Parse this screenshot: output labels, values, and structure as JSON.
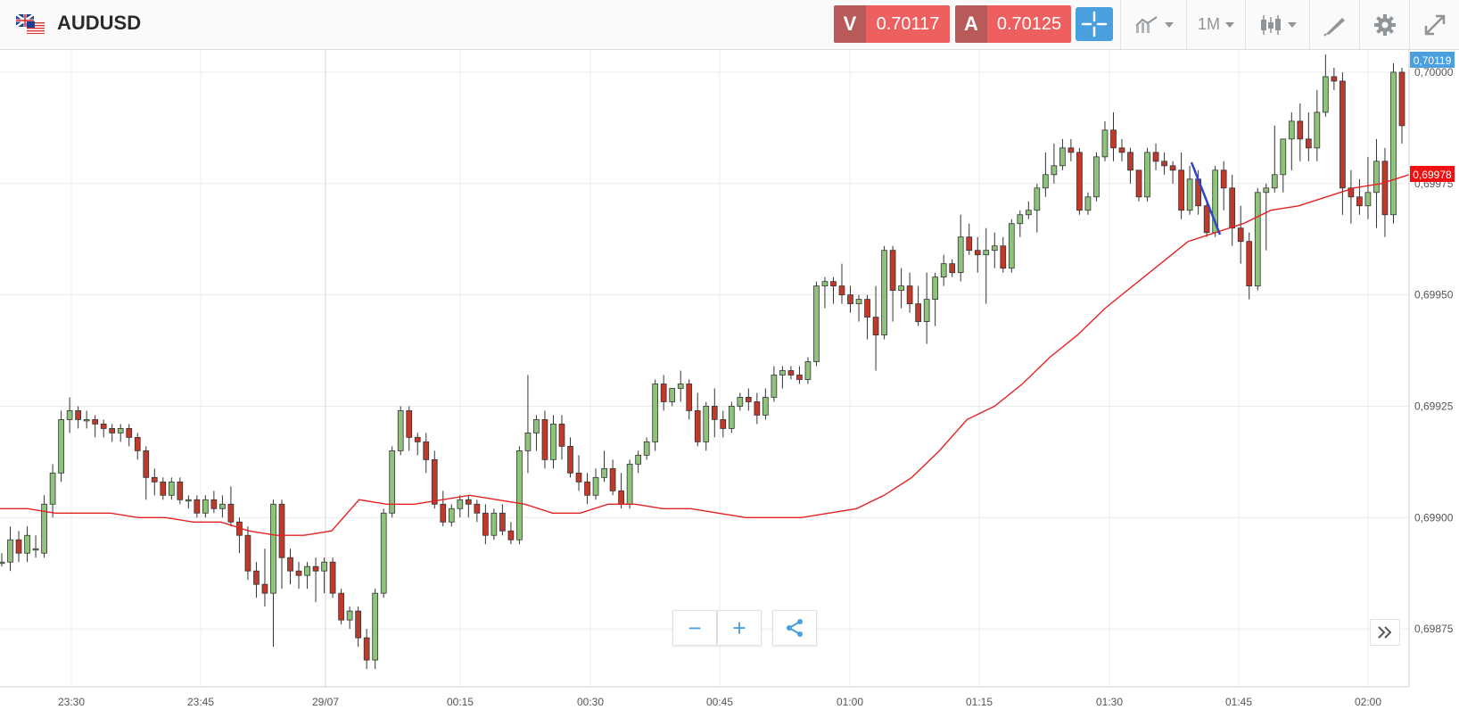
{
  "header": {
    "symbol": "AUDUSD",
    "sell_label": "V",
    "sell_price": "0.70117",
    "buy_label": "A",
    "buy_price": "0.70125",
    "timeframe": "1M",
    "icons": [
      "crosshair-icon",
      "chart-type-icon",
      "candlestick-icon",
      "draw-icon",
      "gear-icon",
      "expand-icon"
    ]
  },
  "chart_data": {
    "type": "candlestick",
    "instrument": "AUDUSD",
    "y_ticks": [
      "0,70000",
      "0,69975",
      "0,69950",
      "0,69925",
      "0,69900",
      "0,69875"
    ],
    "x_ticks": [
      "23:30",
      "23:45",
      "29/07",
      "00:15",
      "00:30",
      "00:45",
      "01:00",
      "01:15",
      "01:30",
      "01:45",
      "02:00"
    ],
    "ylim": [
      0.69862,
      0.70005
    ],
    "price_tag": "0,70119",
    "ma_tag": "0,69978",
    "colors": {
      "up": "#8fc27a",
      "down": "#c0392b",
      "ma": "#e52222",
      "annotation": "#3344cc",
      "price_tag": "#4a9fde",
      "ma_tag": "#ee1111"
    },
    "candles": [
      [
        0.6989,
        0.69892,
        0.69889,
        0.6989
      ],
      [
        0.6989,
        0.69898,
        0.69888,
        0.69895
      ],
      [
        0.69895,
        0.69897,
        0.6989,
        0.69892
      ],
      [
        0.69892,
        0.69898,
        0.6989,
        0.69896
      ],
      [
        0.69893,
        0.69896,
        0.69891,
        0.69893
      ],
      [
        0.69892,
        0.69905,
        0.69891,
        0.69903
      ],
      [
        0.69903,
        0.69912,
        0.699,
        0.6991
      ],
      [
        0.6991,
        0.69924,
        0.69908,
        0.69922
      ],
      [
        0.69922,
        0.69927,
        0.69919,
        0.69924
      ],
      [
        0.69924,
        0.69925,
        0.6992,
        0.69922
      ],
      [
        0.69922,
        0.69924,
        0.6992,
        0.69922
      ],
      [
        0.69922,
        0.69923,
        0.69918,
        0.69921
      ],
      [
        0.69921,
        0.69922,
        0.69918,
        0.6992
      ],
      [
        0.6992,
        0.69921,
        0.69917,
        0.69919
      ],
      [
        0.69919,
        0.69921,
        0.69917,
        0.6992
      ],
      [
        0.6992,
        0.69921,
        0.69916,
        0.69918
      ],
      [
        0.69918,
        0.69919,
        0.69913,
        0.69915
      ],
      [
        0.69915,
        0.69916,
        0.69904,
        0.69909
      ],
      [
        0.69909,
        0.69911,
        0.69905,
        0.69908
      ],
      [
        0.69908,
        0.69909,
        0.69904,
        0.69905
      ],
      [
        0.69905,
        0.69909,
        0.69904,
        0.69908
      ],
      [
        0.69908,
        0.69909,
        0.69903,
        0.69904
      ],
      [
        0.69904,
        0.69905,
        0.69902,
        0.69904
      ],
      [
        0.69904,
        0.69905,
        0.699,
        0.69901
      ],
      [
        0.69901,
        0.69905,
        0.699,
        0.69904
      ],
      [
        0.69904,
        0.69906,
        0.69901,
        0.69902
      ],
      [
        0.69902,
        0.69905,
        0.699,
        0.69903
      ],
      [
        0.69903,
        0.69907,
        0.69898,
        0.69899
      ],
      [
        0.69899,
        0.699,
        0.69892,
        0.69896
      ],
      [
        0.69896,
        0.69898,
        0.69886,
        0.69888
      ],
      [
        0.69888,
        0.6989,
        0.69882,
        0.69885
      ],
      [
        0.69885,
        0.69893,
        0.6988,
        0.69883
      ],
      [
        0.69883,
        0.69904,
        0.69871,
        0.69903
      ],
      [
        0.69903,
        0.69904,
        0.69884,
        0.69891
      ],
      [
        0.69891,
        0.69893,
        0.69885,
        0.69888
      ],
      [
        0.69888,
        0.6989,
        0.69884,
        0.69887
      ],
      [
        0.69887,
        0.6989,
        0.69884,
        0.69889
      ],
      [
        0.69889,
        0.69891,
        0.69881,
        0.69888
      ],
      [
        0.69888,
        0.69891,
        0.69883,
        0.6989
      ],
      [
        0.6989,
        0.69891,
        0.69882,
        0.69883
      ],
      [
        0.69883,
        0.69884,
        0.69876,
        0.69877
      ],
      [
        0.69877,
        0.6988,
        0.69875,
        0.69879
      ],
      [
        0.69879,
        0.6988,
        0.69871,
        0.69873
      ],
      [
        0.69873,
        0.69875,
        0.69866,
        0.69868
      ],
      [
        0.69868,
        0.69884,
        0.69866,
        0.69883
      ],
      [
        0.69883,
        0.69902,
        0.69882,
        0.69901
      ],
      [
        0.69901,
        0.69916,
        0.699,
        0.69915
      ],
      [
        0.69915,
        0.69925,
        0.69914,
        0.69924
      ],
      [
        0.69924,
        0.69925,
        0.69915,
        0.69918
      ],
      [
        0.69918,
        0.69919,
        0.69914,
        0.69917
      ],
      [
        0.69917,
        0.69919,
        0.6991,
        0.69913
      ],
      [
        0.69913,
        0.69915,
        0.69902,
        0.69903
      ],
      [
        0.69903,
        0.69906,
        0.69898,
        0.69899
      ],
      [
        0.69899,
        0.69903,
        0.69898,
        0.69902
      ],
      [
        0.69902,
        0.69905,
        0.699,
        0.69904
      ],
      [
        0.69904,
        0.69905,
        0.699,
        0.69903
      ],
      [
        0.69903,
        0.69904,
        0.69899,
        0.69901
      ],
      [
        0.69901,
        0.69903,
        0.69894,
        0.69896
      ],
      [
        0.69896,
        0.69902,
        0.69895,
        0.69901
      ],
      [
        0.69901,
        0.69903,
        0.69896,
        0.69897
      ],
      [
        0.69897,
        0.69899,
        0.69894,
        0.69895
      ],
      [
        0.69895,
        0.69916,
        0.69894,
        0.69915
      ],
      [
        0.69915,
        0.69932,
        0.6991,
        0.69919
      ],
      [
        0.69919,
        0.69923,
        0.69915,
        0.69922
      ],
      [
        0.69922,
        0.69924,
        0.69911,
        0.69913
      ],
      [
        0.69913,
        0.69923,
        0.69911,
        0.69921
      ],
      [
        0.69921,
        0.69923,
        0.69913,
        0.69916
      ],
      [
        0.69916,
        0.69918,
        0.69909,
        0.6991
      ],
      [
        0.6991,
        0.69914,
        0.69906,
        0.69908
      ],
      [
        0.69908,
        0.6991,
        0.69903,
        0.69905
      ],
      [
        0.69905,
        0.69911,
        0.69904,
        0.69909
      ],
      [
        0.69909,
        0.69915,
        0.69908,
        0.69911
      ],
      [
        0.69911,
        0.69913,
        0.69905,
        0.69906
      ],
      [
        0.69906,
        0.6991,
        0.69902,
        0.69903
      ],
      [
        0.69903,
        0.69913,
        0.69902,
        0.69912
      ],
      [
        0.69912,
        0.69915,
        0.6991,
        0.69914
      ],
      [
        0.69914,
        0.69918,
        0.69913,
        0.69917
      ],
      [
        0.69917,
        0.69931,
        0.69915,
        0.6993
      ],
      [
        0.6993,
        0.69932,
        0.69924,
        0.69926
      ],
      [
        0.69926,
        0.69929,
        0.69925,
        0.69929
      ],
      [
        0.69929,
        0.69933,
        0.69926,
        0.6993
      ],
      [
        0.6993,
        0.69931,
        0.69922,
        0.69924
      ],
      [
        0.69924,
        0.69928,
        0.69916,
        0.69917
      ],
      [
        0.69917,
        0.69926,
        0.69915,
        0.69925
      ],
      [
        0.69925,
        0.69929,
        0.69918,
        0.69922
      ],
      [
        0.69922,
        0.69924,
        0.69918,
        0.6992
      ],
      [
        0.6992,
        0.69926,
        0.69919,
        0.69925
      ],
      [
        0.69925,
        0.69928,
        0.69924,
        0.69927
      ],
      [
        0.69927,
        0.69929,
        0.69924,
        0.69926
      ],
      [
        0.69926,
        0.69928,
        0.69921,
        0.69923
      ],
      [
        0.69923,
        0.69929,
        0.69922,
        0.69927
      ],
      [
        0.69927,
        0.69934,
        0.69926,
        0.69932
      ],
      [
        0.69932,
        0.69934,
        0.69929,
        0.69933
      ],
      [
        0.69933,
        0.69934,
        0.69931,
        0.69932
      ],
      [
        0.69932,
        0.69934,
        0.6993,
        0.69931
      ],
      [
        0.69931,
        0.69936,
        0.6993,
        0.69935
      ],
      [
        0.69935,
        0.69953,
        0.69934,
        0.69952
      ],
      [
        0.69952,
        0.69954,
        0.69947,
        0.69953
      ],
      [
        0.69953,
        0.69954,
        0.69948,
        0.69952
      ],
      [
        0.69952,
        0.69957,
        0.69948,
        0.6995
      ],
      [
        0.6995,
        0.69952,
        0.69946,
        0.69948
      ],
      [
        0.69948,
        0.6995,
        0.69944,
        0.69949
      ],
      [
        0.69949,
        0.6995,
        0.6994,
        0.69945
      ],
      [
        0.69945,
        0.69952,
        0.69933,
        0.69941
      ],
      [
        0.69941,
        0.69961,
        0.6994,
        0.6996
      ],
      [
        0.6996,
        0.69961,
        0.69944,
        0.69951
      ],
      [
        0.69951,
        0.69956,
        0.69947,
        0.69952
      ],
      [
        0.69952,
        0.69955,
        0.69946,
        0.69948
      ],
      [
        0.69948,
        0.69952,
        0.69943,
        0.69944
      ],
      [
        0.69944,
        0.69955,
        0.69939,
        0.69949
      ],
      [
        0.69949,
        0.69955,
        0.69943,
        0.69954
      ],
      [
        0.69954,
        0.69959,
        0.69952,
        0.69957
      ],
      [
        0.69957,
        0.69958,
        0.69954,
        0.69955
      ],
      [
        0.69955,
        0.69968,
        0.69953,
        0.69963
      ],
      [
        0.69963,
        0.69966,
        0.69959,
        0.6996
      ],
      [
        0.6996,
        0.69963,
        0.69955,
        0.69959
      ],
      [
        0.69959,
        0.69965,
        0.69948,
        0.6996
      ],
      [
        0.6996,
        0.69964,
        0.69956,
        0.69961
      ],
      [
        0.69961,
        0.69963,
        0.69955,
        0.69956
      ],
      [
        0.69956,
        0.69967,
        0.69955,
        0.69966
      ],
      [
        0.69966,
        0.69969,
        0.69963,
        0.69968
      ],
      [
        0.69968,
        0.69971,
        0.69967,
        0.69969
      ],
      [
        0.69969,
        0.69975,
        0.69964,
        0.69974
      ],
      [
        0.69974,
        0.69982,
        0.69972,
        0.69977
      ],
      [
        0.69977,
        0.69984,
        0.69975,
        0.69979
      ],
      [
        0.69979,
        0.69985,
        0.69978,
        0.69983
      ],
      [
        0.69983,
        0.69985,
        0.6998,
        0.69982
      ],
      [
        0.69982,
        0.69983,
        0.69968,
        0.69969
      ],
      [
        0.69969,
        0.69973,
        0.69968,
        0.69972
      ],
      [
        0.69972,
        0.69982,
        0.69971,
        0.69981
      ],
      [
        0.69981,
        0.69989,
        0.6998,
        0.69987
      ],
      [
        0.69987,
        0.69991,
        0.6998,
        0.69983
      ],
      [
        0.69983,
        0.69985,
        0.6998,
        0.69982
      ],
      [
        0.69982,
        0.69983,
        0.69975,
        0.69978
      ],
      [
        0.69978,
        0.69978,
        0.69971,
        0.69972
      ],
      [
        0.69972,
        0.69983,
        0.69971,
        0.69982
      ],
      [
        0.69982,
        0.69984,
        0.69978,
        0.6998
      ],
      [
        0.6998,
        0.69982,
        0.69977,
        0.69979
      ],
      [
        0.69979,
        0.6998,
        0.69975,
        0.69978
      ],
      [
        0.69978,
        0.69982,
        0.69967,
        0.69969
      ],
      [
        0.69969,
        0.69979,
        0.69968,
        0.69976
      ],
      [
        0.69976,
        0.69978,
        0.69968,
        0.6997
      ],
      [
        0.6997,
        0.69971,
        0.69963,
        0.69964
      ],
      [
        0.69964,
        0.69979,
        0.69963,
        0.69978
      ],
      [
        0.69978,
        0.6998,
        0.69969,
        0.69974
      ],
      [
        0.69974,
        0.69977,
        0.69961,
        0.69965
      ],
      [
        0.69965,
        0.6997,
        0.69957,
        0.69962
      ],
      [
        0.69962,
        0.69964,
        0.69949,
        0.69952
      ],
      [
        0.69952,
        0.69974,
        0.69951,
        0.69973
      ],
      [
        0.69973,
        0.69975,
        0.6996,
        0.69974
      ],
      [
        0.69974,
        0.69988,
        0.69973,
        0.69977
      ],
      [
        0.69977,
        0.69984,
        0.69973,
        0.69985
      ],
      [
        0.69985,
        0.69991,
        0.69978,
        0.69989
      ],
      [
        0.69989,
        0.69993,
        0.6998,
        0.69985
      ],
      [
        0.69985,
        0.69991,
        0.6998,
        0.69983
      ],
      [
        0.69983,
        0.69996,
        0.6998,
        0.69991
      ],
      [
        0.69991,
        0.70004,
        0.6999,
        0.69999
      ],
      [
        0.69999,
        0.70001,
        0.69996,
        0.69998
      ],
      [
        0.69998,
        0.7,
        0.69968,
        0.69974
      ],
      [
        0.69974,
        0.69978,
        0.69966,
        0.69972
      ],
      [
        0.69972,
        0.69976,
        0.69968,
        0.6997
      ],
      [
        0.6997,
        0.69981,
        0.69967,
        0.69973
      ],
      [
        0.69973,
        0.69985,
        0.69965,
        0.6998
      ],
      [
        0.6998,
        0.69983,
        0.69963,
        0.69968
      ],
      [
        0.69968,
        0.70002,
        0.69966,
        0.7
      ],
      [
        0.7,
        0.70001,
        0.69984,
        0.69988
      ]
    ],
    "moving_average": [
      0.69902,
      0.69902,
      0.69901,
      0.69901,
      0.69901,
      0.699,
      0.699,
      0.69899,
      0.69899,
      0.69897,
      0.69896,
      0.69896,
      0.69897,
      0.69904,
      0.69903,
      0.69903,
      0.69904,
      0.69905,
      0.69904,
      0.69903,
      0.69901,
      0.69901,
      0.69903,
      0.69903,
      0.69902,
      0.69902,
      0.69901,
      0.699,
      0.699,
      0.699,
      0.69901,
      0.69902,
      0.69905,
      0.69909,
      0.69915,
      0.69922,
      0.69925,
      0.6993,
      0.69936,
      0.69941,
      0.69947,
      0.69952,
      0.69957,
      0.69962,
      0.69964,
      0.69966,
      0.69969,
      0.6997,
      0.69972,
      0.69974,
      0.69975,
      0.69977
    ]
  },
  "controls": {
    "zoom_out": "−",
    "zoom_in": "+",
    "share_icon": "share-icon",
    "collapse_icon": "double-chevron-right-icon"
  }
}
